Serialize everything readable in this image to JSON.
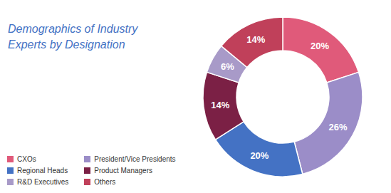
{
  "chart_data": {
    "type": "donut",
    "title": "Demographics of Industry\nExperts by Designation",
    "title_color": "#4472c4",
    "categories": [
      "CXOs",
      "President/Vice Presidents",
      "Regional Heads",
      "Product Managers",
      "R&D Executives",
      "Others"
    ],
    "values": [
      20,
      26,
      20,
      14,
      6,
      14
    ],
    "value_labels": [
      "20%",
      "26%",
      "20%",
      "14%",
      "6%",
      "14%"
    ],
    "colors": [
      "#e05a7a",
      "#9b8dc8",
      "#4472c4",
      "#7b2045",
      "#a89ac8",
      "#c0405a"
    ],
    "data_labels": true,
    "legend": "bottom-left"
  }
}
